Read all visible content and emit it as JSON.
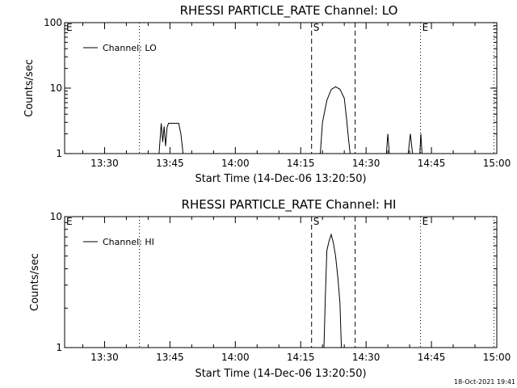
{
  "chart_data": [
    {
      "type": "line",
      "title": "RHESSI PARTICLE_RATE Channel: LO",
      "ylabel": "Counts/sec",
      "xlabel": "Start Time (14-Dec-06 13:20:50)",
      "yscale": "log",
      "ylim": [
        1,
        100
      ],
      "yticks": [
        {
          "v": 1,
          "label": "1"
        },
        {
          "v": 10,
          "label": "10"
        },
        {
          "v": 100,
          "label": "100"
        }
      ],
      "xlim": [
        "13:20:50",
        "15:00:00"
      ],
      "xticks": [
        "13:30",
        "13:45",
        "14:00",
        "14:15",
        "14:30",
        "14:45",
        "15:00"
      ],
      "legend": {
        "label": "Channel: LO",
        "position": "top-left"
      },
      "vlines": [
        {
          "time": "13:38:00",
          "style": "dotted",
          "label": ""
        },
        {
          "time": "14:17:30",
          "style": "dashed",
          "label": "S"
        },
        {
          "time": "14:27:30",
          "style": "dashed",
          "label": ""
        },
        {
          "time": "14:42:30",
          "style": "dotted",
          "label": "E"
        },
        {
          "time": "14:59:20",
          "style": "dotted",
          "label": ""
        }
      ],
      "edge_labels": [
        {
          "time": "13:20:50",
          "label": "E"
        }
      ],
      "series": [
        {
          "x": [
            "13:42:30",
            "13:43:00",
            "13:43:20",
            "13:43:40",
            "13:44:00",
            "13:44:20",
            "13:44:40",
            "13:45:00",
            "13:45:30",
            "13:46:00",
            "13:46:30",
            "13:47:00",
            "13:47:30",
            "13:48:00"
          ],
          "y": [
            1.0,
            2.9,
            1.5,
            2.6,
            1.3,
            2.5,
            2.9,
            2.9,
            2.9,
            2.9,
            2.9,
            2.9,
            2.0,
            1.0
          ]
        },
        {
          "x": [
            "14:19:30",
            "14:20:00",
            "14:21:00",
            "14:22:00",
            "14:23:00",
            "14:24:00",
            "14:25:00",
            "14:25:30",
            "14:26:00",
            "14:26:20"
          ],
          "y": [
            1.0,
            3.0,
            6.5,
            9.5,
            10.5,
            9.6,
            7.0,
            3.5,
            1.6,
            1.0
          ]
        },
        {
          "x": [
            "14:34:40",
            "14:35:00",
            "14:35:20"
          ],
          "y": [
            1.0,
            2.0,
            1.0
          ]
        },
        {
          "x": [
            "14:39:40",
            "14:40:10",
            "14:40:40"
          ],
          "y": [
            1.0,
            2.0,
            1.0
          ]
        },
        {
          "x": [
            "14:42:20",
            "14:42:35",
            "14:42:50"
          ],
          "y": [
            1.0,
            2.0,
            1.0
          ]
        }
      ]
    },
    {
      "type": "line",
      "title": "RHESSI PARTICLE_RATE Channel: HI",
      "ylabel": "Counts/sec",
      "xlabel": "Start Time (14-Dec-06 13:20:50)",
      "yscale": "log",
      "ylim": [
        1,
        10
      ],
      "yticks": [
        {
          "v": 1,
          "label": "1"
        },
        {
          "v": 10,
          "label": "10"
        }
      ],
      "xlim": [
        "13:20:50",
        "15:00:00"
      ],
      "xticks": [
        "13:30",
        "13:45",
        "14:00",
        "14:15",
        "14:30",
        "14:45",
        "15:00"
      ],
      "legend": {
        "label": "Channel: HI",
        "position": "top-left"
      },
      "vlines": [
        {
          "time": "13:38:00",
          "style": "dotted",
          "label": ""
        },
        {
          "time": "14:17:30",
          "style": "dashed",
          "label": "S"
        },
        {
          "time": "14:27:30",
          "style": "dashed",
          "label": ""
        },
        {
          "time": "14:42:30",
          "style": "dotted",
          "label": "E"
        },
        {
          "time": "14:59:20",
          "style": "dotted",
          "label": ""
        }
      ],
      "edge_labels": [
        {
          "time": "13:20:50",
          "label": "E"
        }
      ],
      "series": [
        {
          "x": [
            "14:20:20",
            "14:20:40",
            "14:21:00",
            "14:21:30",
            "14:22:00",
            "14:22:30",
            "14:23:00",
            "14:23:30",
            "14:24:00",
            "14:24:20"
          ],
          "y": [
            1.0,
            2.5,
            5.5,
            6.5,
            7.3,
            6.3,
            5.0,
            3.5,
            2.2,
            1.0
          ]
        }
      ]
    }
  ],
  "footer": {
    "timestamp": "18-Oct-2021 19:41"
  }
}
